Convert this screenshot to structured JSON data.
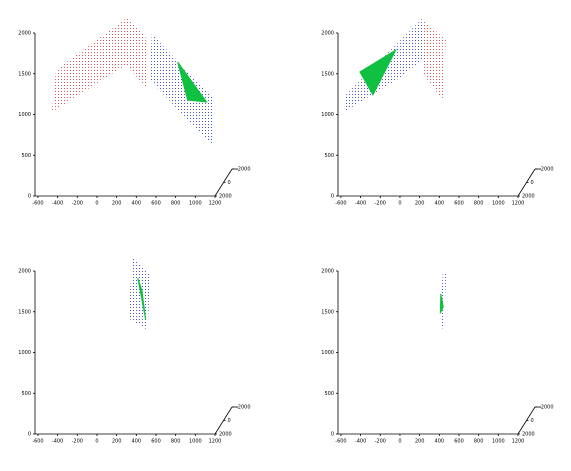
{
  "chart_data": [
    {
      "type": "polygon",
      "xlim": [
        -630,
        1200
      ],
      "ylim": [
        0,
        2000
      ],
      "xticks": [
        -600,
        -400,
        -200,
        0,
        200,
        400,
        600,
        800,
        1000,
        1200
      ],
      "yticks": [
        0,
        500,
        1000,
        1500,
        2000
      ],
      "depth_ticks": [
        -2000,
        0,
        2000
      ],
      "series": [
        {
          "color": "#d03030",
          "style": "dots",
          "x": [
            -458,
            -417,
            314,
            517,
            496,
            293
          ],
          "values": [
            1030,
            1546,
            2196,
            1914,
            1335,
            1608
          ]
        },
        {
          "color": "#2030c0",
          "style": "dots",
          "x": [
            557,
            1176,
            1176,
            537
          ],
          "values": [
            1988,
            1202,
            613,
            1423
          ]
        },
        {
          "color": "#10c040",
          "style": "fill",
          "x": [
            821,
            1115,
            922
          ],
          "values": [
            1644,
            1153,
            1178
          ]
        }
      ]
    },
    {
      "type": "polygon",
      "xlim": [
        -630,
        1200
      ],
      "ylim": [
        0,
        2000
      ],
      "xticks": [
        -600,
        -400,
        -200,
        0,
        200,
        400,
        600,
        800,
        1000,
        1200
      ],
      "yticks": [
        0,
        500,
        1000,
        1500,
        2000
      ],
      "depth_ticks": [
        -2000,
        0,
        2000
      ],
      "series": [
        {
          "color": "#2030c0",
          "style": "dots",
          "x": [
            -570,
            -560,
            242,
            250,
            0
          ],
          "values": [
            1030,
            1230,
            2196,
            1700,
            1450
          ]
        },
        {
          "color": "#d03030",
          "style": "dots",
          "x": [
            242,
            466,
            435,
            242
          ],
          "values": [
            2160,
            1914,
            1178,
            1485
          ]
        },
        {
          "color": "#10c040",
          "style": "fill",
          "x": [
            -42,
            -275,
            -407
          ],
          "values": [
            1792,
            1240,
            1522
          ]
        }
      ]
    },
    {
      "type": "polygon",
      "xlim": [
        -630,
        1200
      ],
      "ylim": [
        0,
        2000
      ],
      "xticks": [
        -600,
        -400,
        -200,
        0,
        200,
        400,
        600,
        800,
        1000,
        1200
      ],
      "yticks": [
        0,
        500,
        1000,
        1500,
        2000
      ],
      "depth_ticks": [
        -2000,
        0,
        2000
      ],
      "series": [
        {
          "color": "#2030c0",
          "style": "dots",
          "x": [
            364,
            537,
            517,
            314
          ],
          "values": [
            2160,
            1951,
            1276,
            1423
          ]
        },
        {
          "color": "#10c040",
          "style": "fill",
          "x": [
            415,
            496,
            456
          ],
          "values": [
            1914,
            1399,
            1767
          ]
        }
      ]
    },
    {
      "type": "polygon",
      "xlim": [
        -630,
        1200
      ],
      "ylim": [
        0,
        2000
      ],
      "xticks": [
        -600,
        -400,
        -200,
        0,
        200,
        400,
        600,
        800,
        1000,
        1200
      ],
      "yticks": [
        0,
        500,
        1000,
        1500,
        2000
      ],
      "depth_ticks": [
        -2000,
        0,
        2000
      ],
      "series": [
        {
          "color": "#2030c0",
          "style": "dots",
          "x": [
            435,
            470,
            446,
            405
          ],
          "values": [
            1988,
            1988,
            1276,
            1337
          ]
        },
        {
          "color": "#10c040",
          "style": "fill",
          "x": [
            415,
            440,
            410
          ],
          "values": [
            1720,
            1560,
            1480
          ]
        }
      ]
    }
  ]
}
